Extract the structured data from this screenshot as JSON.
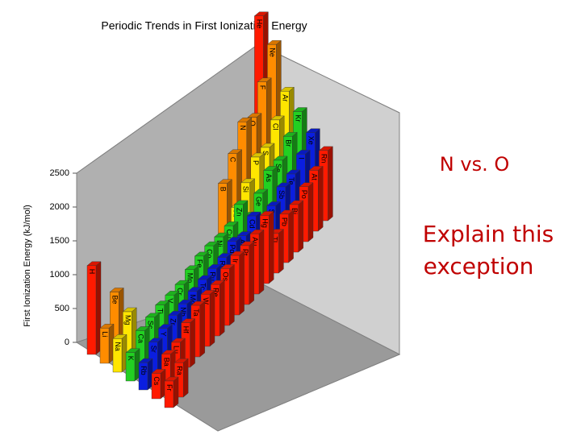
{
  "chart_data": {
    "type": "bar3d",
    "title": "Periodic Trends in First Ionization Energy",
    "y_label": "First Ionization Energy (kJ/mol)",
    "ylim": [
      0,
      2500
    ],
    "yticks": [
      0,
      500,
      1000,
      1500,
      2000,
      2500
    ],
    "series": [
      {
        "color": "#ff1a00",
        "labels": [
          "H",
          null,
          null,
          null,
          null,
          null,
          null,
          null,
          null,
          null,
          null,
          null,
          null,
          null,
          null,
          null,
          null,
          "He"
        ],
        "values": [
          1312,
          null,
          null,
          null,
          null,
          null,
          null,
          null,
          null,
          null,
          null,
          null,
          null,
          null,
          null,
          null,
          null,
          2372
        ]
      },
      {
        "color": "#ff8c00",
        "labels": [
          "Li",
          "Be",
          null,
          null,
          null,
          null,
          null,
          null,
          null,
          null,
          null,
          null,
          "B",
          "C",
          "N",
          "O",
          "F",
          "Ne"
        ],
        "values": [
          520,
          899,
          null,
          null,
          null,
          null,
          null,
          null,
          null,
          null,
          null,
          null,
          801,
          1086,
          1402,
          1314,
          1681,
          2081
        ]
      },
      {
        "color": "#ffe600",
        "labels": [
          "Na",
          "Mg",
          null,
          null,
          null,
          null,
          null,
          null,
          null,
          null,
          null,
          null,
          "Al",
          "Si",
          "P",
          "S",
          "Cl",
          "Ar"
        ],
        "values": [
          496,
          738,
          null,
          null,
          null,
          null,
          null,
          null,
          null,
          null,
          null,
          null,
          578,
          787,
          1012,
          1000,
          1251,
          1521
        ]
      },
      {
        "color": "#22d022",
        "labels": [
          "K",
          "Ca",
          "Sc",
          "Ti",
          "V",
          "Cr",
          "Mn",
          "Fe",
          "Co",
          "Ni",
          "Cu",
          "Zn",
          "Ga",
          "Ge",
          "As",
          "Se",
          "Br",
          "Kr"
        ],
        "values": [
          419,
          590,
          633,
          659,
          651,
          653,
          717,
          763,
          760,
          737,
          746,
          906,
          579,
          762,
          947,
          941,
          1140,
          1351
        ]
      },
      {
        "color": "#0a1ee0",
        "labels": [
          "Rb",
          "Sr",
          "Y",
          "Zr",
          "Nb",
          "Mo",
          "Tc",
          "Ru",
          "Rh",
          "Pd",
          "Ag",
          "Cd",
          "In",
          "Sn",
          "Sb",
          "Te",
          "I",
          "Xe"
        ],
        "values": [
          403,
          550,
          600,
          640,
          652,
          684,
          702,
          710,
          720,
          804,
          731,
          868,
          558,
          709,
          834,
          869,
          1008,
          1170
        ]
      },
      {
        "color": "#ff1a00",
        "labels": [
          "Cs",
          "Ba",
          "Lu",
          "Hf",
          "Ta",
          "W",
          "Re",
          "Os",
          "Ir",
          "Pt",
          "Au",
          "Hg",
          "Tl",
          "Pb",
          "Bi",
          "Po",
          "At",
          "Rn"
        ],
        "values": [
          376,
          503,
          524,
          659,
          761,
          770,
          760,
          840,
          880,
          870,
          890,
          1007,
          589,
          716,
          703,
          812,
          900,
          1037
        ]
      },
      {
        "color": "#ff1a00",
        "labels": [
          "Fr",
          "Ra",
          null,
          null,
          null,
          null,
          null,
          null,
          null,
          null,
          null,
          null,
          null,
          null,
          null,
          null,
          null,
          null
        ],
        "values": [
          393,
          509,
          null,
          null,
          null,
          null,
          null,
          null,
          null,
          null,
          null,
          null,
          null,
          null,
          null,
          null,
          null,
          null
        ]
      }
    ],
    "annotations": [
      "N vs. O",
      "Explain this",
      "exception"
    ]
  }
}
